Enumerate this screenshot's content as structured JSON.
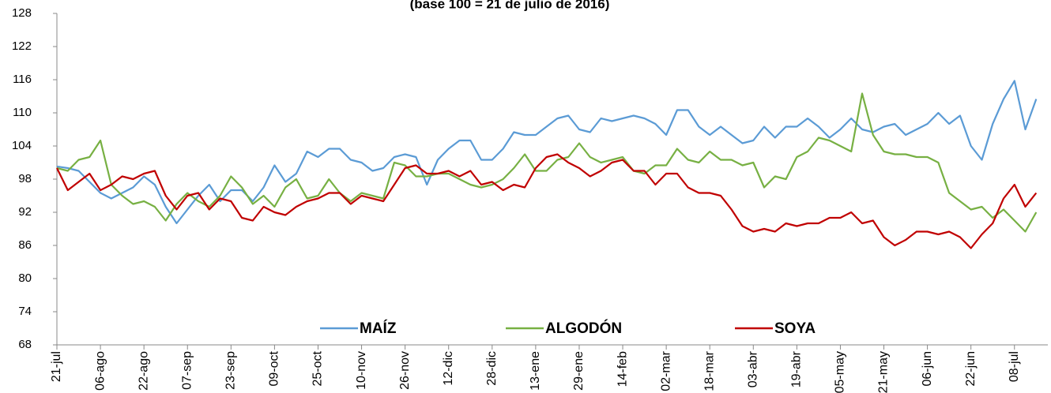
{
  "chart_data": {
    "type": "line",
    "title": "(base 100 = 21 de julio de 2016)",
    "categories": [
      "21-jul",
      null,
      null,
      null,
      "06-ago",
      null,
      null,
      null,
      "22-ago",
      null,
      null,
      null,
      "07-sep",
      null,
      null,
      null,
      "23-sep",
      null,
      null,
      null,
      "09-oct",
      null,
      null,
      null,
      "25-oct",
      null,
      null,
      null,
      "10-nov",
      null,
      null,
      null,
      "26-nov",
      null,
      null,
      null,
      "12-dic",
      null,
      null,
      null,
      "28-dic",
      null,
      null,
      null,
      "13-ene",
      null,
      null,
      null,
      "29-ene",
      null,
      null,
      null,
      "14-feb",
      null,
      null,
      null,
      "02-mar",
      null,
      null,
      null,
      "18-mar",
      null,
      null,
      null,
      "03-abr",
      null,
      null,
      null,
      "19-abr",
      null,
      null,
      null,
      "05-may",
      null,
      null,
      null,
      "21-may",
      null,
      null,
      null,
      "06-jun",
      null,
      null,
      null,
      "22-jun",
      null,
      null,
      null,
      "08-jul",
      null,
      null
    ],
    "series": [
      {
        "name": "MAÍZ",
        "color": "#5b9bd5",
        "values": [
          100.3,
          100,
          99.5,
          97.5,
          95.5,
          94.5,
          95.5,
          96.5,
          98.5,
          97,
          93,
          90,
          92.5,
          95,
          97,
          94,
          96,
          96,
          94,
          96.5,
          100.5,
          97.5,
          99,
          103,
          102,
          103.5,
          103.5,
          101.5,
          101,
          99.5,
          100,
          102,
          102.5,
          102,
          97,
          101.5,
          103.5,
          105,
          105,
          101.5,
          101.5,
          103.5,
          106.5,
          106,
          106,
          107.5,
          109,
          109.5,
          107,
          106.5,
          109,
          108.5,
          109,
          109.5,
          109,
          108,
          106,
          110.5,
          110.5,
          107.5,
          106,
          107.5,
          106,
          104.5,
          105,
          107.5,
          105.5,
          107.5,
          107.5,
          109,
          107.5,
          105.5,
          107,
          109,
          107,
          106.5,
          107.5,
          108,
          106,
          107,
          108,
          110,
          108,
          109.5,
          104,
          101.5,
          108,
          112.5,
          115.8,
          107,
          112.5
        ]
      },
      {
        "name": "ALGODÓN",
        "color": "#77b043",
        "values": [
          100,
          99.5,
          101.5,
          102,
          105,
          97,
          95,
          93.5,
          94,
          93,
          90.5,
          93.5,
          95.5,
          94,
          93,
          95,
          98.5,
          96.5,
          93.5,
          95,
          93,
          96.5,
          98,
          94.5,
          95,
          98,
          95.5,
          94,
          95.5,
          95,
          94.5,
          101,
          100.5,
          98.5,
          98.5,
          99,
          99,
          98,
          97,
          96.5,
          97,
          98,
          100,
          102.5,
          99.5,
          99.5,
          101.5,
          102,
          104.5,
          102,
          101,
          101.5,
          102,
          99.5,
          99,
          100.5,
          100.5,
          103.5,
          101.5,
          101,
          103,
          101.5,
          101.5,
          100.5,
          101,
          96.5,
          98.5,
          98,
          102,
          103,
          105.5,
          105,
          104,
          103,
          113.5,
          106,
          103,
          102.5,
          102.5,
          102,
          102,
          101,
          95.5,
          94,
          92.5,
          93,
          91,
          92.5,
          90.5,
          88.5,
          92
        ]
      },
      {
        "name": "SOYA",
        "color": "#c00000",
        "values": [
          100,
          96,
          97.5,
          99,
          96,
          97,
          98.5,
          98,
          99,
          99.5,
          95,
          92.5,
          95,
          95.5,
          92.5,
          94.5,
          94,
          91,
          90.5,
          93,
          92,
          91.5,
          93,
          94,
          94.5,
          95.5,
          95.5,
          93.5,
          95,
          94.5,
          94,
          97,
          100,
          100.5,
          99,
          99,
          99.5,
          98.5,
          99.5,
          97,
          97.5,
          96,
          97,
          96.5,
          100,
          102,
          102.5,
          101,
          100,
          98.5,
          99.5,
          101,
          101.5,
          99.5,
          99.5,
          97,
          99,
          99,
          96.5,
          95.5,
          95.5,
          95,
          92.5,
          89.5,
          88.5,
          89,
          88.5,
          90,
          89.5,
          90,
          90,
          91,
          91,
          92,
          90,
          90.5,
          87.5,
          86,
          87,
          88.5,
          88.5,
          88,
          88.5,
          87.5,
          85.5,
          88,
          90,
          94.5,
          97,
          93,
          95.5
        ]
      }
    ],
    "ylim": [
      68,
      128
    ],
    "yticks": [
      68,
      74,
      80,
      86,
      92,
      98,
      104,
      110,
      116,
      122,
      128
    ]
  }
}
